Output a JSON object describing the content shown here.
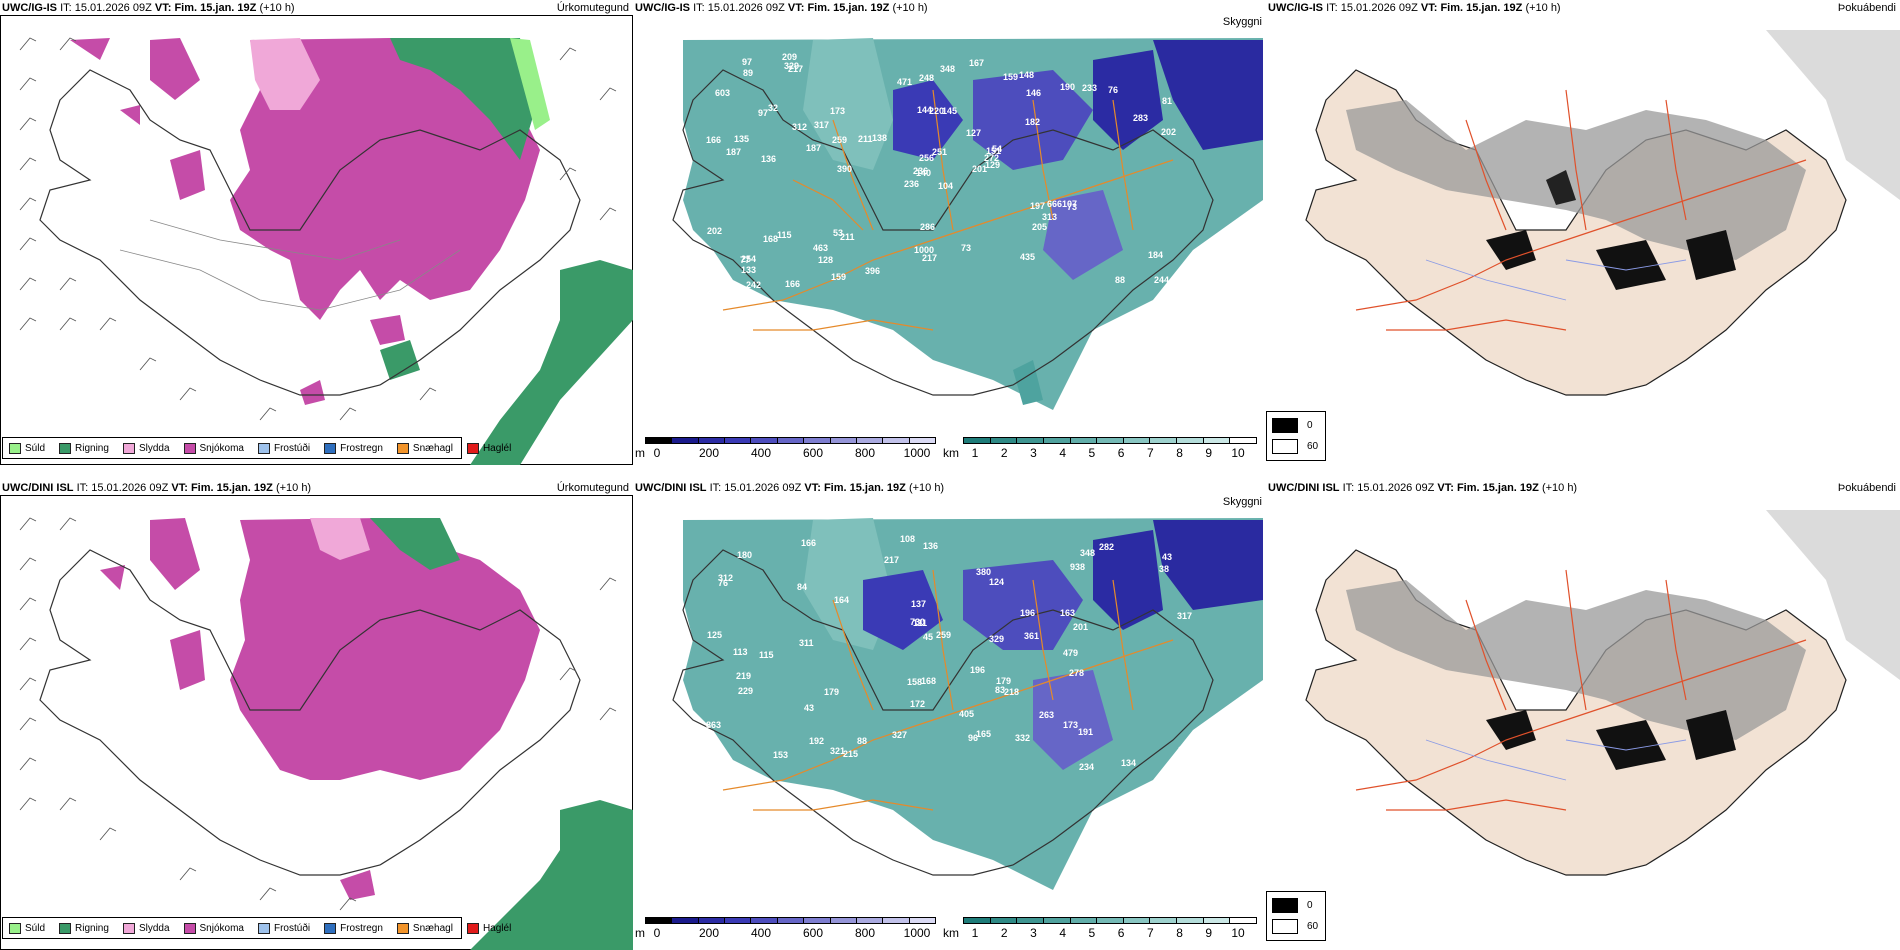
{
  "rows": [
    {
      "model": "UWC/IG-IS",
      "it_label": "IT:",
      "it_value": "15.01.2026 09Z",
      "vt_label": "VT:",
      "vt_value": "Fim. 15.jan. 19Z",
      "offset": "(+10 h)",
      "numbers": [
        "104",
        "97",
        "140",
        "254",
        "151",
        "211",
        "148",
        "145",
        "146",
        "201",
        "217",
        "244",
        "136",
        "81",
        "236",
        "182",
        "166",
        "144",
        "127",
        "115",
        "138",
        "133",
        "128",
        "220",
        "54",
        "73",
        "32",
        "248",
        "187",
        "197",
        "202",
        "236",
        "1000",
        "256",
        "173",
        "190",
        "53",
        "88",
        "184",
        "107",
        "167",
        "211",
        "187",
        "205",
        "159",
        "166",
        "272",
        "242",
        "217",
        "129",
        "168",
        "283",
        "603",
        "313",
        "435",
        "463",
        "329",
        "97",
        "73",
        "76",
        "348",
        "390",
        "135",
        "317",
        "233",
        "209",
        "159",
        "471",
        "251",
        "202",
        "286",
        "396",
        "666",
        "259",
        "77",
        "89",
        "312"
      ]
    },
    {
      "model": "UWC/DINI ISL",
      "it_label": "IT:",
      "it_value": "15.01.2026 09Z",
      "vt_label": "VT:",
      "vt_value": "Fim. 15.jan. 19Z",
      "offset": "(+10 h)",
      "numbers": [
        "125",
        "136",
        "163",
        "43",
        "312",
        "134",
        "115",
        "124",
        "137",
        "282",
        "259",
        "278",
        "108",
        "76",
        "84",
        "43",
        "165",
        "113",
        "196",
        "172",
        "263",
        "191",
        "38",
        "111",
        "192",
        "45",
        "179",
        "166",
        "215",
        "96",
        "219",
        "234",
        "329",
        "153",
        "321",
        "229",
        "201",
        "180",
        "88",
        "164",
        "405",
        "361",
        "262",
        "317",
        "168",
        "179",
        "938",
        "863",
        "327",
        "311",
        "196",
        "173",
        "218",
        "479",
        "332",
        "217",
        "83",
        "730",
        "348",
        "380",
        "158"
      ]
    }
  ],
  "params": {
    "precip": "Úrkomutegund",
    "ceiling": "Skyggni",
    "fog": "Þokuábendi"
  },
  "precip_legend": [
    {
      "label": "Súld",
      "color": "#99f08a"
    },
    {
      "label": "Rigning",
      "color": "#3a9a68"
    },
    {
      "label": "Slydda",
      "color": "#f0a8d8"
    },
    {
      "label": "Snjókoma",
      "color": "#c54ca8"
    },
    {
      "label": "Frostúði",
      "color": "#9ec2ec"
    },
    {
      "label": "Frostregn",
      "color": "#2f6fbe"
    },
    {
      "label": "Snæhagl",
      "color": "#f2942a"
    },
    {
      "label": "Haglél",
      "color": "#e11b1b"
    }
  ],
  "ceiling_bar": {
    "unit": "m",
    "labels": [
      "0",
      "200",
      "400",
      "600",
      "800",
      "1000"
    ],
    "colors": [
      "#000000",
      "#1a1a8c",
      "#2b2ba3",
      "#3a3ab5",
      "#4d4dbd",
      "#6666c7",
      "#7e7ed0",
      "#9595d8",
      "#aaaae0",
      "#c2c2ea",
      "#dadaf4"
    ]
  },
  "vis_bar": {
    "unit": "km",
    "labels": [
      "1",
      "2",
      "3",
      "4",
      "5",
      "6",
      "7",
      "8",
      "9",
      "10"
    ],
    "colors": [
      "#1e7c79",
      "#2f8a86",
      "#3f9692",
      "#50a29e",
      "#62aeaa",
      "#75bab6",
      "#89c6c2",
      "#9ed2ce",
      "#b4ddda",
      "#cbe8e6",
      "#ffffff"
    ]
  },
  "fog_legend": [
    {
      "label": "0",
      "color": "#000000"
    },
    {
      "label": "60",
      "color": "#ffffff"
    }
  ]
}
